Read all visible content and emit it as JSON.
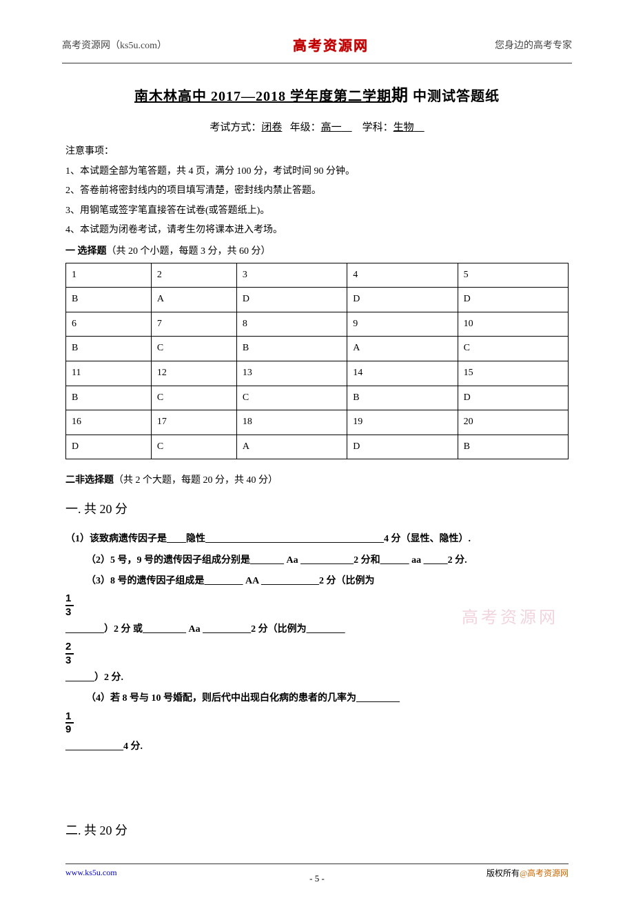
{
  "header": {
    "left": "高考资源网（ks5u.com）",
    "center": "高考资源网",
    "right": "您身边的高考专家"
  },
  "title": {
    "prefix": "南木林高中 2017—2018",
    "middle": " 学年度第二学期",
    "big": "期",
    "suffix": " 中测试答题纸"
  },
  "subtitle": {
    "exam_mode_label": "考试方式：",
    "exam_mode_value": "闭卷",
    "grade_label": "年级：",
    "grade_value": "高一",
    "subject_label": "学科：",
    "subject_value": "生物"
  },
  "notes": {
    "heading": "注意事项：",
    "lines": [
      "1、本试题全部为笔答题，共 4  页，满分 100 分，考试时间 90 分钟。",
      "2、答卷前将密封线内的项目填写清楚，密封线内禁止答题。",
      "3、用钢笔或签字笔直接答在试卷(或答题纸上)。",
      "4、本试题为闭卷考试，请考生勿将课本进入考场。"
    ]
  },
  "section1": {
    "heading_bold": "一  选择题",
    "heading_rest": "（共 20 个小题，每题 3 分，共 60 分）",
    "table": {
      "rows": [
        [
          "1",
          "2",
          "3",
          "4",
          "5"
        ],
        [
          "B",
          "A",
          "D",
          "D",
          "D"
        ],
        [
          "6",
          "7",
          "8",
          "9",
          "10"
        ],
        [
          "B",
          "C",
          "B",
          "A",
          "C"
        ],
        [
          "11",
          "12",
          "13",
          "14",
          "15"
        ],
        [
          "B",
          "C",
          "C",
          "B",
          "D"
        ],
        [
          "16",
          "17",
          "18",
          "19",
          "20"
        ],
        [
          "D",
          "C",
          "A",
          "D",
          "B"
        ]
      ],
      "col_widths": [
        "17%",
        "17%",
        "22%",
        "22%",
        "22%"
      ]
    }
  },
  "section2": {
    "heading_bold": "二非选择题",
    "heading_rest": "（共 2 个大题，每题 20 分，共 40 分）",
    "sub1": "一. 共 20 分",
    "sub2": "二. 共 20 分",
    "q1_line": "（1）该致病遗传因子是____隐性_____________________________________4 分（显性、隐性）.",
    "q2_prefix": "（2）5 号，9 号的遗传因子组成分别是_______  Aa ___________",
    "q2_mid": "2 分和______ aa _____",
    "q2_suffix": "2 分.",
    "q3_prefix": "（3）8 号的遗传因子组成是________  AA ____________",
    "q3_suffix": "2 分（比例为",
    "frac1_num": "1",
    "frac1_den": "3",
    "q3b_line": "________）2 分 或_________ ",
    "q3b_bold": "Aa",
    "q3b_mid": " __________",
    "q3b_suffix": "2 分（比例为________",
    "frac2_num": "2",
    "frac2_den": "3",
    "q3c_line": "______）2 分.",
    "q4_line": "（4）若 8 号与 10 号婚配，则后代中出现白化病的患者的几率为_________",
    "frac3_num": "1",
    "frac3_den": "9",
    "q4_suffix": "4 分."
  },
  "watermark": "高考资源网",
  "footer": {
    "left": "www.ks5u.com",
    "center": "- 5 -",
    "right_plain": "版权所有",
    "right_orange": "@高考资源网"
  }
}
